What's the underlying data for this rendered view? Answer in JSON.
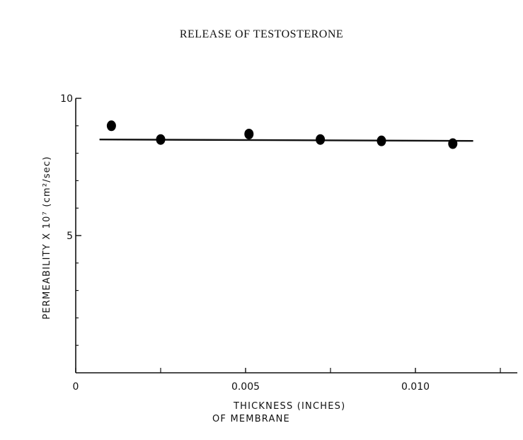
{
  "page_title": "RELEASE OF TESTOSTERONE",
  "chart_data": {
    "type": "scatter",
    "title": "",
    "xlabel_line1": "THICKNESS (INCHES)",
    "xlabel_line2": "OF MEMBRANE",
    "ylabel": "PERMEABILITY X 10⁷ (cm²/sec)",
    "xlim": [
      0,
      0.013
    ],
    "ylim": [
      0,
      10
    ],
    "x_tick_values": [
      0,
      0.005,
      0.01
    ],
    "x_tick_labels": [
      "0",
      "0.005",
      "0.010"
    ],
    "y_tick_values": [
      5,
      10
    ],
    "y_tick_labels": [
      "5",
      "10"
    ],
    "y_minor_ticks": [
      1,
      2,
      3,
      4,
      6,
      7,
      8,
      9
    ],
    "x_minor_ticks": [
      0.0025,
      0.0075,
      0.0125
    ],
    "grid": false,
    "points": [
      {
        "x": 0.00105,
        "y": 9.0
      },
      {
        "x": 0.0025,
        "y": 8.5
      },
      {
        "x": 0.0051,
        "y": 8.7
      },
      {
        "x": 0.0072,
        "y": 8.5
      },
      {
        "x": 0.009,
        "y": 8.45
      },
      {
        "x": 0.0111,
        "y": 8.35
      }
    ],
    "fit_line": {
      "x": [
        0.0007,
        0.0117
      ],
      "y": [
        8.5,
        8.45
      ]
    },
    "marker_color": "#000000"
  }
}
